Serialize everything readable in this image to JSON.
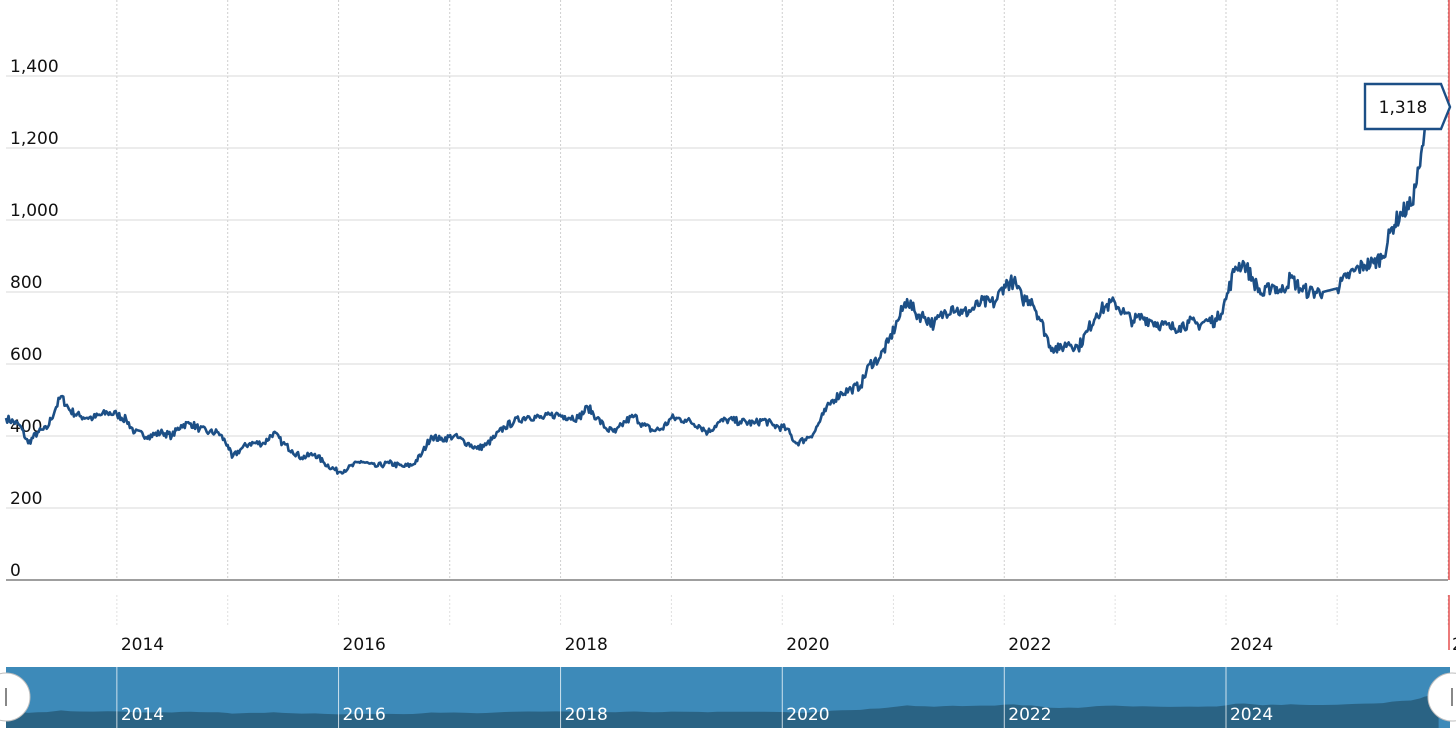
{
  "chart_data": {
    "type": "line",
    "title": "",
    "xlabel": "",
    "ylabel": "",
    "xlim": [
      "2013-01-01",
      "2026-01-01"
    ],
    "ylim": [
      0,
      1600
    ],
    "grid": true,
    "y_ticks": [
      0,
      200,
      400,
      600,
      800,
      1000,
      1200,
      1400
    ],
    "y_tick_labels": [
      "0",
      "200",
      "400",
      "600",
      "800",
      "1,000",
      "1,200",
      "1,400"
    ],
    "x_tick_labels": [
      "2014",
      "2016",
      "2018",
      "2020",
      "2022",
      "2024",
      "2"
    ],
    "navigator_labels": [
      "2014",
      "2016",
      "2018",
      "2020",
      "2022",
      "2024"
    ],
    "tooltip": {
      "label": "1,318",
      "value": 1318
    },
    "colors": {
      "line": "#1c4f86",
      "navigator_bg": "#3d8ab9",
      "navigator_area": "#2a6384",
      "cursor": "#e02020"
    },
    "series": [
      {
        "points": [
          [
            "2013-01-01",
            450
          ],
          [
            "2013-02-15",
            430
          ],
          [
            "2013-03-15",
            380
          ],
          [
            "2013-04-15",
            410
          ],
          [
            "2013-05-15",
            420
          ],
          [
            "2013-06-15",
            480
          ],
          [
            "2013-07-01",
            510
          ],
          [
            "2013-08-01",
            470
          ],
          [
            "2013-09-01",
            455
          ],
          [
            "2013-10-15",
            450
          ],
          [
            "2013-12-01",
            465
          ],
          [
            "2014-01-01",
            460
          ],
          [
            "2014-02-01",
            445
          ],
          [
            "2014-03-01",
            410
          ],
          [
            "2014-04-15",
            400
          ],
          [
            "2014-06-01",
            410
          ],
          [
            "2014-07-01",
            400
          ],
          [
            "2014-08-01",
            430
          ],
          [
            "2014-09-01",
            435
          ],
          [
            "2014-10-01",
            420
          ],
          [
            "2014-11-01",
            410
          ],
          [
            "2014-12-01",
            410
          ],
          [
            "2015-01-01",
            375
          ],
          [
            "2015-01-15",
            340
          ],
          [
            "2015-02-15",
            365
          ],
          [
            "2015-03-15",
            380
          ],
          [
            "2015-05-01",
            380
          ],
          [
            "2015-06-01",
            410
          ],
          [
            "2015-07-01",
            380
          ],
          [
            "2015-08-01",
            360
          ],
          [
            "2015-09-01",
            340
          ],
          [
            "2015-10-15",
            350
          ],
          [
            "2015-11-15",
            325
          ],
          [
            "2016-01-01",
            300
          ],
          [
            "2016-02-01",
            310
          ],
          [
            "2016-03-15",
            330
          ],
          [
            "2016-05-01",
            315
          ],
          [
            "2016-06-15",
            325
          ],
          [
            "2016-08-01",
            315
          ],
          [
            "2016-09-01",
            320
          ],
          [
            "2016-10-01",
            350
          ],
          [
            "2016-11-01",
            400
          ],
          [
            "2016-12-01",
            390
          ],
          [
            "2017-01-15",
            400
          ],
          [
            "2017-03-01",
            380
          ],
          [
            "2017-04-01",
            365
          ],
          [
            "2017-05-01",
            375
          ],
          [
            "2017-06-01",
            400
          ],
          [
            "2017-07-01",
            425
          ],
          [
            "2017-08-01",
            440
          ],
          [
            "2017-09-15",
            455
          ],
          [
            "2017-11-01",
            450
          ],
          [
            "2017-12-15",
            460
          ],
          [
            "2018-01-15",
            455
          ],
          [
            "2018-03-01",
            450
          ],
          [
            "2018-04-01",
            480
          ],
          [
            "2018-05-01",
            450
          ],
          [
            "2018-06-01",
            420
          ],
          [
            "2018-07-01",
            410
          ],
          [
            "2018-08-01",
            440
          ],
          [
            "2018-09-01",
            455
          ],
          [
            "2018-10-01",
            430
          ],
          [
            "2018-11-01",
            415
          ],
          [
            "2018-12-01",
            420
          ],
          [
            "2019-01-01",
            450
          ],
          [
            "2019-02-15",
            445
          ],
          [
            "2019-04-01",
            430
          ],
          [
            "2019-05-01",
            410
          ],
          [
            "2019-06-01",
            435
          ],
          [
            "2019-07-01",
            445
          ],
          [
            "2019-08-15",
            440
          ],
          [
            "2019-10-01",
            435
          ],
          [
            "2019-11-01",
            445
          ],
          [
            "2019-12-01",
            430
          ],
          [
            "2020-01-15",
            420
          ],
          [
            "2020-02-15",
            380
          ],
          [
            "2020-03-15",
            390
          ],
          [
            "2020-04-15",
            410
          ],
          [
            "2020-05-15",
            460
          ],
          [
            "2020-06-15",
            500
          ],
          [
            "2020-07-15",
            520
          ],
          [
            "2020-08-15",
            530
          ],
          [
            "2020-09-15",
            540
          ],
          [
            "2020-10-15",
            600
          ],
          [
            "2020-11-15",
            615
          ],
          [
            "2020-12-15",
            660
          ],
          [
            "2021-01-15",
            720
          ],
          [
            "2021-02-15",
            780
          ],
          [
            "2021-03-15",
            740
          ],
          [
            "2021-04-15",
            730
          ],
          [
            "2021-05-15",
            710
          ],
          [
            "2021-06-15",
            740
          ],
          [
            "2021-07-15",
            760
          ],
          [
            "2021-08-15",
            740
          ],
          [
            "2021-09-15",
            750
          ],
          [
            "2021-10-15",
            770
          ],
          [
            "2021-12-01",
            770
          ],
          [
            "2022-01-01",
            820
          ],
          [
            "2022-02-01",
            830
          ],
          [
            "2022-03-01",
            780
          ],
          [
            "2022-04-01",
            780
          ],
          [
            "2022-05-01",
            720
          ],
          [
            "2022-06-01",
            650
          ],
          [
            "2022-07-01",
            640
          ],
          [
            "2022-08-01",
            660
          ],
          [
            "2022-09-01",
            645
          ],
          [
            "2022-10-01",
            690
          ],
          [
            "2022-11-01",
            740
          ],
          [
            "2022-12-01",
            760
          ],
          [
            "2023-01-01",
            770
          ],
          [
            "2023-02-01",
            740
          ],
          [
            "2023-03-01",
            720
          ],
          [
            "2023-04-01",
            730
          ],
          [
            "2023-05-01",
            720
          ],
          [
            "2023-06-01",
            710
          ],
          [
            "2023-07-01",
            700
          ],
          [
            "2023-08-01",
            705
          ],
          [
            "2023-09-01",
            715
          ],
          [
            "2023-10-01",
            710
          ],
          [
            "2023-11-01",
            720
          ],
          [
            "2023-12-01",
            720
          ],
          [
            "2024-01-01",
            780
          ],
          [
            "2024-02-01",
            870
          ],
          [
            "2024-03-01",
            880
          ],
          [
            "2024-04-01",
            830
          ],
          [
            "2024-05-01",
            790
          ],
          [
            "2024-06-01",
            820
          ],
          [
            "2024-07-01",
            800
          ],
          [
            "2024-08-01",
            840
          ],
          [
            "2024-09-01",
            810
          ],
          [
            "2024-10-01",
            800
          ],
          [
            "2024-11-15",
            800
          ],
          [
            "2025-01-01",
            810
          ],
          [
            "2025-02-01",
            840
          ],
          [
            "2025-03-01",
            860
          ],
          [
            "2025-04-01",
            875
          ],
          [
            "2025-05-01",
            880
          ],
          [
            "2025-06-01",
            900
          ],
          [
            "2025-07-01",
            980
          ],
          [
            "2025-08-01",
            1020
          ],
          [
            "2025-09-01",
            1040
          ],
          [
            "2025-10-01",
            1150
          ],
          [
            "2025-10-15",
            1240
          ],
          [
            "2025-11-01",
            1300
          ],
          [
            "2025-12-01",
            1318
          ]
        ]
      }
    ]
  }
}
